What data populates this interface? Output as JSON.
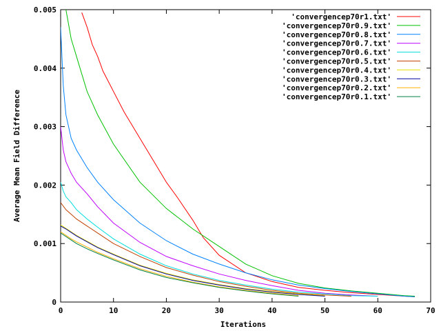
{
  "chart_data": {
    "type": "line",
    "title": "",
    "xlabel": "Iterations",
    "ylabel": "Average Mean Field Difference",
    "xlim": [
      0,
      70
    ],
    "ylim": [
      0,
      0.005
    ],
    "x_ticks": [
      0,
      10,
      20,
      30,
      40,
      50,
      60,
      70
    ],
    "y_ticks": [
      0,
      0.001,
      0.002,
      0.003,
      0.004,
      0.005
    ],
    "x_tick_labels": [
      "0",
      "10",
      "20",
      "30",
      "40",
      "50",
      "60",
      "70"
    ],
    "y_tick_labels": [
      "0",
      "0.001",
      "0.002",
      "0.003",
      "0.004",
      "0.005"
    ],
    "legend_position": "top-right",
    "grid": false,
    "series": [
      {
        "name": "'convergencep70r1.txt'",
        "color": "#ff0000",
        "x": [
          4,
          5,
          6,
          7,
          8,
          10,
          12,
          15,
          18,
          20,
          22,
          25,
          27,
          30,
          35,
          40,
          45,
          50,
          55,
          60,
          65,
          67
        ],
        "y": [
          0.00495,
          0.0047,
          0.0044,
          0.0042,
          0.00395,
          0.0036,
          0.00325,
          0.0028,
          0.00235,
          0.00205,
          0.0018,
          0.0014,
          0.0011,
          0.0008,
          0.0005,
          0.00035,
          0.00025,
          0.0002,
          0.00016,
          0.00013,
          0.0001,
          9e-05
        ]
      },
      {
        "name": "'convergencep70r0.9.txt'",
        "color": "#00c000",
        "x": [
          1,
          2,
          3,
          4,
          5,
          7,
          10,
          15,
          20,
          25,
          30,
          35,
          40,
          45,
          50,
          55,
          60,
          65,
          67
        ],
        "y": [
          0.005,
          0.0045,
          0.0042,
          0.0039,
          0.0036,
          0.0032,
          0.0027,
          0.00205,
          0.0016,
          0.00125,
          0.00095,
          0.00065,
          0.00045,
          0.00032,
          0.00024,
          0.00019,
          0.00015,
          0.00011,
          0.0001
        ]
      },
      {
        "name": "'convergencep70r0.8.txt'",
        "color": "#0080ff",
        "x": [
          0,
          0.5,
          1,
          2,
          3,
          5,
          7,
          10,
          15,
          20,
          25,
          30,
          35,
          40,
          45,
          50,
          55,
          60,
          65,
          67
        ],
        "y": [
          0.0047,
          0.0037,
          0.0032,
          0.0028,
          0.0026,
          0.0023,
          0.00205,
          0.00175,
          0.00135,
          0.00105,
          0.00082,
          0.00065,
          0.0005,
          0.00038,
          0.00029,
          0.00023,
          0.00018,
          0.00014,
          0.0001,
          9e-05
        ]
      },
      {
        "name": "'convergencep70r0.7.txt'",
        "color": "#c000ff",
        "x": [
          0,
          0.5,
          1,
          2,
          3,
          5,
          7,
          10,
          15,
          20,
          25,
          30,
          35,
          40,
          45,
          50,
          55,
          60
        ],
        "y": [
          0.003,
          0.0026,
          0.0024,
          0.0022,
          0.00205,
          0.00185,
          0.00163,
          0.00135,
          0.00102,
          0.00078,
          0.00062,
          0.00048,
          0.00037,
          0.00028,
          0.0002,
          0.00015,
          0.00012,
          0.0001
        ]
      },
      {
        "name": "'convergencep70r0.6.txt'",
        "color": "#00dddd",
        "x": [
          0,
          0.5,
          1,
          2,
          3,
          5,
          7,
          10,
          15,
          20,
          25,
          30,
          35,
          40,
          45,
          50,
          55,
          60
        ],
        "y": [
          0.00205,
          0.0019,
          0.0018,
          0.0017,
          0.00158,
          0.00142,
          0.00128,
          0.00108,
          0.00082,
          0.00062,
          0.00048,
          0.00037,
          0.00029,
          0.00022,
          0.00017,
          0.00014,
          0.00011,
          0.0001
        ]
      },
      {
        "name": "'convergencep70r0.5.txt'",
        "color": "#c04000",
        "x": [
          0,
          1,
          2,
          3,
          5,
          7,
          10,
          15,
          20,
          25,
          30,
          35,
          40,
          45,
          50,
          55
        ],
        "y": [
          0.0017,
          0.00158,
          0.0015,
          0.00142,
          0.0013,
          0.00118,
          0.001,
          0.00078,
          0.00059,
          0.00046,
          0.00035,
          0.00027,
          0.0002,
          0.00015,
          0.00012,
          0.0001
        ]
      },
      {
        "name": "'convergencep70r0.4.txt'",
        "color": "#e8e000",
        "x": [
          0,
          1,
          2,
          3,
          5,
          7,
          10,
          15,
          20,
          25,
          30,
          35,
          40,
          45,
          50
        ],
        "y": [
          0.00132,
          0.00126,
          0.0012,
          0.00114,
          0.00104,
          0.00094,
          0.00082,
          0.00063,
          0.00049,
          0.00038,
          0.0003,
          0.00023,
          0.00018,
          0.00014,
          0.00011
        ]
      },
      {
        "name": "'convergencep70r0.3.txt'",
        "color": "#0000a0",
        "x": [
          0,
          1,
          2,
          3,
          5,
          7,
          10,
          15,
          20,
          25,
          30,
          35,
          40,
          45,
          50
        ],
        "y": [
          0.0013,
          0.00125,
          0.00119,
          0.00113,
          0.00103,
          0.00093,
          0.00081,
          0.00062,
          0.00048,
          0.00037,
          0.00029,
          0.00022,
          0.00017,
          0.00013,
          0.0001
        ]
      },
      {
        "name": "'convergencep70r0.2.txt'",
        "color": "#ffb000",
        "x": [
          0,
          1,
          2,
          3,
          5,
          7,
          10,
          15,
          20,
          25,
          30,
          35,
          40,
          45
        ],
        "y": [
          0.0012,
          0.00114,
          0.00108,
          0.00103,
          0.00094,
          0.00085,
          0.00074,
          0.00057,
          0.00044,
          0.00034,
          0.00026,
          0.0002,
          0.00015,
          0.00011
        ]
      },
      {
        "name": "'convergencep70r0.1.txt'",
        "color": "#008040",
        "x": [
          0,
          1,
          2,
          3,
          5,
          7,
          10,
          15,
          20,
          25,
          30,
          35,
          40,
          45
        ],
        "y": [
          0.00118,
          0.00112,
          0.00106,
          0.001,
          0.00091,
          0.00083,
          0.00072,
          0.00055,
          0.00042,
          0.00033,
          0.00025,
          0.00019,
          0.00014,
          0.0001
        ]
      }
    ]
  }
}
